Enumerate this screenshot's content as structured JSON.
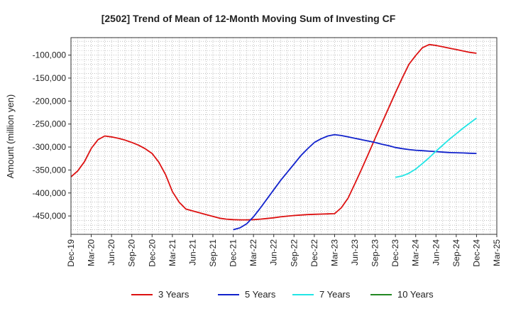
{
  "chart_data": {
    "type": "line",
    "title": "[2502]  Trend of Mean of 12-Month Moving Sum of Investing CF",
    "xlabel": "",
    "ylabel": "Amount (million yen)",
    "x_ticks": [
      "Dec-19",
      "Mar-20",
      "Jun-20",
      "Sep-20",
      "Dec-20",
      "Mar-21",
      "Jun-21",
      "Sep-21",
      "Dec-21",
      "Mar-22",
      "Jun-22",
      "Sep-22",
      "Dec-22",
      "Mar-23",
      "Jun-23",
      "Sep-23",
      "Dec-23",
      "Mar-24",
      "Jun-24",
      "Sep-24",
      "Dec-24",
      "Mar-25"
    ],
    "y_ticks": [
      -100000,
      -150000,
      -200000,
      -250000,
      -300000,
      -350000,
      -400000,
      -450000
    ],
    "y_tick_labels": [
      "-100,000",
      "-150,000",
      "-200,000",
      "-250,000",
      "-300,000",
      "-350,000",
      "-400,000",
      "-450,000"
    ],
    "ylim": [
      -490000,
      -62000
    ],
    "grid": true,
    "legend_position": "bottom",
    "series": [
      {
        "name": "3 Years",
        "color": "#dd1111",
        "x": [
          "Dec-19",
          "Jan-20",
          "Feb-20",
          "Mar-20",
          "Apr-20",
          "May-20",
          "Jun-20",
          "Jul-20",
          "Aug-20",
          "Sep-20",
          "Oct-20",
          "Nov-20",
          "Dec-20",
          "Jan-21",
          "Feb-21",
          "Mar-21",
          "Apr-21",
          "May-21",
          "Jun-21",
          "Jul-21",
          "Aug-21",
          "Sep-21",
          "Oct-21",
          "Nov-21",
          "Dec-21",
          "Jan-22",
          "Feb-22",
          "Mar-22",
          "Apr-22",
          "May-22",
          "Jun-22",
          "Jul-22",
          "Aug-22",
          "Sep-22",
          "Oct-22",
          "Nov-22",
          "Dec-22",
          "Jan-23",
          "Feb-23",
          "Mar-23",
          "Apr-23",
          "May-23",
          "Jun-23",
          "Jul-23",
          "Aug-23",
          "Sep-23",
          "Oct-23",
          "Nov-23",
          "Dec-23",
          "Jan-24",
          "Feb-24",
          "Mar-24",
          "Apr-24",
          "May-24",
          "Jun-24",
          "Jul-24",
          "Aug-24",
          "Sep-24",
          "Oct-24",
          "Nov-24",
          "Dec-24"
        ],
        "values": [
          -365000,
          -352000,
          -332000,
          -303000,
          -284000,
          -276000,
          -278000,
          -281000,
          -285000,
          -290000,
          -296000,
          -304000,
          -314000,
          -333000,
          -360000,
          -397000,
          -420000,
          -435000,
          -439000,
          -443000,
          -447000,
          -451000,
          -455000,
          -457000,
          -458000,
          -458500,
          -458500,
          -458000,
          -457000,
          -455500,
          -454000,
          -452000,
          -450500,
          -449000,
          -448000,
          -447000,
          -446500,
          -446000,
          -445500,
          -445000,
          -432000,
          -411000,
          -380000,
          -348000,
          -315000,
          -281000,
          -248000,
          -215000,
          -182000,
          -150000,
          -120000,
          -101000,
          -84000,
          -77000,
          -79000,
          -82000,
          -85000,
          -88000,
          -91000,
          -94000,
          -96000
        ]
      },
      {
        "name": "5 Years",
        "color": "#1122cc",
        "x": [
          "Dec-21",
          "Jan-22",
          "Feb-22",
          "Mar-22",
          "Apr-22",
          "May-22",
          "Jun-22",
          "Jul-22",
          "Aug-22",
          "Sep-22",
          "Oct-22",
          "Nov-22",
          "Dec-22",
          "Jan-23",
          "Feb-23",
          "Mar-23",
          "Apr-23",
          "May-23",
          "Jun-23",
          "Jul-23",
          "Aug-23",
          "Sep-23",
          "Oct-23",
          "Nov-23",
          "Dec-23",
          "Jan-24",
          "Feb-24",
          "Mar-24",
          "Apr-24",
          "May-24",
          "Jun-24",
          "Jul-24",
          "Aug-24",
          "Sep-24",
          "Oct-24",
          "Nov-24",
          "Dec-24"
        ],
        "values": [
          -480000,
          -476000,
          -467000,
          -452000,
          -433000,
          -413000,
          -393000,
          -373000,
          -355000,
          -337000,
          -319000,
          -304000,
          -290000,
          -282000,
          -276000,
          -273000,
          -275000,
          -278000,
          -281000,
          -284000,
          -287000,
          -290000,
          -294000,
          -297000,
          -301000,
          -303500,
          -305500,
          -307000,
          -308000,
          -309000,
          -310000,
          -311000,
          -312000,
          -312500,
          -313000,
          -313500,
          -314000
        ]
      },
      {
        "name": "7 Years",
        "color": "#22e5e5",
        "x": [
          "Dec-23",
          "Jan-24",
          "Feb-24",
          "Mar-24",
          "Apr-24",
          "May-24",
          "Jun-24",
          "Jul-24",
          "Aug-24",
          "Sep-24",
          "Oct-24",
          "Nov-24",
          "Dec-24"
        ],
        "values": [
          -366000,
          -363000,
          -357000,
          -348000,
          -336000,
          -323000,
          -309000,
          -296000,
          -283000,
          -271000,
          -259000,
          -248000,
          -237000
        ]
      },
      {
        "name": "10 Years",
        "color": "#228822",
        "x": [],
        "values": []
      }
    ]
  }
}
